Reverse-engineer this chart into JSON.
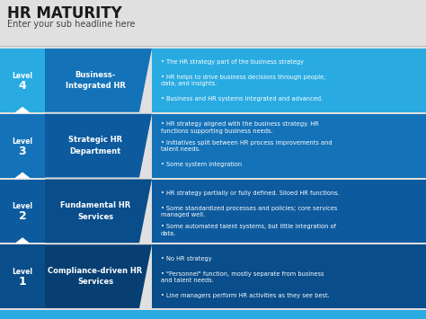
{
  "title": "HR MATURITY",
  "subtitle": "Enter your sub headline here",
  "background_color": "#e0e0e0",
  "levels": [
    {
      "level": "4",
      "name": "Business-\nIntegrated HR",
      "bullets": [
        "The HR strategy part of the business strategy",
        "HR helps to drive business decisions through people,\ndata, and insights.",
        "Business and HR systems integrated and advanced."
      ],
      "left_col_color": "#29abe2",
      "mid_col_color": "#1472b8",
      "right_col_color": "#29abe2"
    },
    {
      "level": "3",
      "name": "Strategic HR\nDepartment",
      "bullets": [
        "HR strategy aligned with the business strategy. HR\nfunctions supporting business needs.",
        "Initiatives split between HR process improvements and\ntalent needs.",
        "Some system integration"
      ],
      "left_col_color": "#1472b8",
      "mid_col_color": "#0d5a9e",
      "right_col_color": "#1472b8"
    },
    {
      "level": "2",
      "name": "Fundamental HR\nServices",
      "bullets": [
        "HR strategy partially or fully defined. Siloed HR functions.",
        "Some standardized processes and policies; core services\nmanaged well.",
        "Some automated talent systems, but little integration of\ndata."
      ],
      "left_col_color": "#0d5a9e",
      "mid_col_color": "#094d8a",
      "right_col_color": "#0d5a9e"
    },
    {
      "level": "1",
      "name": "Compliance-driven HR\nServices",
      "bullets": [
        "No HR strategy",
        "\"Personnel\" function, mostly separate from business\nand talent needs.",
        "Line managers perform HR activities as they see best."
      ],
      "left_col_color": "#094d8a",
      "mid_col_color": "#073f72",
      "right_col_color": "#094d8a"
    }
  ],
  "bottom_bar_color": "#29abe2",
  "title_color": "#1a1a1a",
  "subtitle_color": "#444444"
}
